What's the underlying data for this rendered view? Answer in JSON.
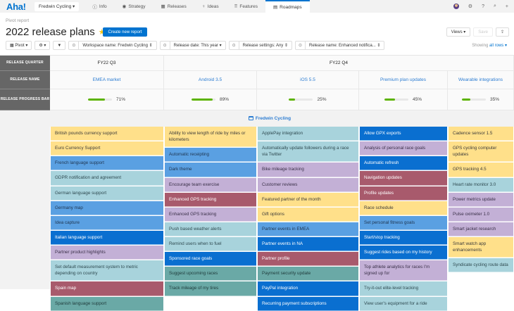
{
  "topnav": {
    "logo": "Aha!",
    "workspace": "Fredwin Cycling ▾",
    "tabs": [
      {
        "icon": "ⓘ",
        "label": "Info"
      },
      {
        "icon": "◉",
        "label": "Strategy"
      },
      {
        "icon": "▦",
        "label": "Releases"
      },
      {
        "icon": "♀",
        "label": "Ideas"
      },
      {
        "icon": "⠿",
        "label": "Features"
      },
      {
        "icon": "▤",
        "label": "Roadmaps"
      }
    ],
    "right_icons": {
      "settings": "⚙",
      "help": "?",
      "search": "⌕",
      "add": "+"
    }
  },
  "page": {
    "breadcrumb": "Pivot report",
    "title": "2022 release plans",
    "star": "★",
    "create_button": "Create new report",
    "views_button": "Views ▾",
    "save_button": "Save",
    "export_icon": "⇪"
  },
  "filters": {
    "pivot": "▦ Pivot ▾",
    "settings": "⚙ ▾",
    "filter_icon": "▼",
    "items": [
      {
        "icon": "⊙",
        "label": "Workspace name: Fredwin Cycling ⇕"
      },
      {
        "icon": "⊙",
        "label": "Release date: This year ▾"
      },
      {
        "icon": "⊙",
        "label": "Release settings: Any ⇕"
      },
      {
        "icon": "⊙",
        "label": "Release name: Enhanced notifica... ⇕"
      }
    ],
    "showing_prefix": "Showing ",
    "showing_link": "all rows ▾"
  },
  "pivot": {
    "row_headers": [
      "RELEASE QUARTER",
      "RELEASE NAME",
      "RELEASE PROGRESS BAR"
    ],
    "quarters": [
      {
        "label": "FY22 Q3"
      },
      {
        "label": "FY22 Q4"
      }
    ],
    "releases": [
      {
        "name": "EMEA market",
        "progress": 71,
        "progress_label": "71%"
      },
      {
        "name": "Android 3.5",
        "progress": 89,
        "progress_label": "89%"
      },
      {
        "name": "iOS 5.5",
        "progress": 25,
        "progress_label": "25%"
      },
      {
        "name": "Premium plan updates",
        "progress": 45,
        "progress_label": "45%"
      },
      {
        "name": "Wearable integrations",
        "progress": 35,
        "progress_label": "35%"
      }
    ],
    "group_label": "Fredwin Cycling",
    "columns": [
      {
        "cards": [
          {
            "text": "British pounds currency support",
            "color": "yellow"
          },
          {
            "text": "Euro Currency Support",
            "color": "yellow"
          },
          {
            "text": "French language support",
            "color": "blue"
          },
          {
            "text": "GDPR notification and agreement",
            "color": "lightteal"
          },
          {
            "text": "German language support",
            "color": "lightteal"
          },
          {
            "text": "Germany map",
            "color": "blue"
          },
          {
            "text": "Idea capture",
            "color": "blue"
          },
          {
            "text": "Italian language support",
            "color": "darkblue"
          },
          {
            "text": "Partner product highlights",
            "color": "purple"
          },
          {
            "text": "Set default measurement system to metric depending on country",
            "color": "lightteal"
          },
          {
            "text": "Spain map",
            "color": "maroon"
          },
          {
            "text": "Spanish language support",
            "color": "teal"
          }
        ]
      },
      {
        "cards": [
          {
            "text": "Ability to view length of ride by miles or kilometers",
            "color": "yellow"
          },
          {
            "text": "Automatic receipting",
            "color": "blue"
          },
          {
            "text": "Dark theme",
            "color": "blue"
          },
          {
            "text": "Encourage team exercise",
            "color": "purple"
          },
          {
            "text": "Enhanced GPS tracking",
            "color": "maroon"
          },
          {
            "text": "Enhanced GPS tracking",
            "color": "purple"
          },
          {
            "text": "Push based weather alerts",
            "color": "lightteal"
          },
          {
            "text": "Remind users when to fuel",
            "color": "lightteal"
          },
          {
            "text": "Sponsored race goals",
            "color": "darkblue"
          },
          {
            "text": "Suggest upcoming races",
            "color": "teal"
          },
          {
            "text": "Track mileage of my tires",
            "color": "teal"
          }
        ]
      },
      {
        "cards": [
          {
            "text": "ApplePay integration",
            "color": "lightteal"
          },
          {
            "text": "Automatically update followers during a race via Twitter",
            "color": "lightteal"
          },
          {
            "text": "Bike mileage tracking",
            "color": "purple"
          },
          {
            "text": "Customer reviews",
            "color": "purple"
          },
          {
            "text": "Featured partner of the month",
            "color": "yellow"
          },
          {
            "text": "Gift options",
            "color": "yellow"
          },
          {
            "text": "Partner events in EMEA",
            "color": "blue"
          },
          {
            "text": "Partner events in NA",
            "color": "darkblue"
          },
          {
            "text": "Partner profile",
            "color": "maroon"
          },
          {
            "text": "Payment security update",
            "color": "teal"
          },
          {
            "text": "PayPal integration",
            "color": "darkblue"
          },
          {
            "text": "Recurring payment subscriptions",
            "color": "darkblue"
          }
        ]
      },
      {
        "cards": [
          {
            "text": "Allow GPX exports",
            "color": "darkblue"
          },
          {
            "text": "Analysis of personal race goals",
            "color": "purple"
          },
          {
            "text": "Automatic refresh",
            "color": "darkblue"
          },
          {
            "text": "Navigation updates",
            "color": "maroon"
          },
          {
            "text": "Profile updates",
            "color": "maroon"
          },
          {
            "text": "Race schedule",
            "color": "yellow"
          },
          {
            "text": "Set personal fitness goals",
            "color": "blue"
          },
          {
            "text": "Start/stop tracking",
            "color": "darkblue"
          },
          {
            "text": "Suggest rides based on my history",
            "color": "darkblue"
          },
          {
            "text": "Top athlete analytics for races I'm signed up for",
            "color": "purple"
          },
          {
            "text": "Try-it-out elite-level tracking",
            "color": "lightteal"
          },
          {
            "text": "View user's equipment for a ride",
            "color": "lightteal"
          }
        ]
      },
      {
        "cards": [
          {
            "text": "Cadence sensor 1.5",
            "color": "yellow"
          },
          {
            "text": "GPS cycling computer updates",
            "color": "yellow"
          },
          {
            "text": "GPS tracking 4.5",
            "color": "yellow"
          },
          {
            "text": "Heart rate monitor 3.0",
            "color": "lightteal"
          },
          {
            "text": "Power metrics update",
            "color": "purple"
          },
          {
            "text": "Pulse oximeter 1.0",
            "color": "purple"
          },
          {
            "text": "Smart jacket research",
            "color": "purple"
          },
          {
            "text": "Smart watch app enhancements",
            "color": "yellow"
          },
          {
            "text": "Syndicate cycling route data",
            "color": "lightteal"
          }
        ]
      }
    ]
  },
  "colors": {
    "brand": "#0073cf",
    "yellow": "#ffe08a",
    "blue": "#5aa0e2",
    "darkblue": "#0a6fd0",
    "lightteal": "#a8d3dc",
    "purple": "#c3b0d6",
    "maroon": "#a85a6c",
    "teal": "#6aa9a6",
    "progress": "#5cb300"
  }
}
